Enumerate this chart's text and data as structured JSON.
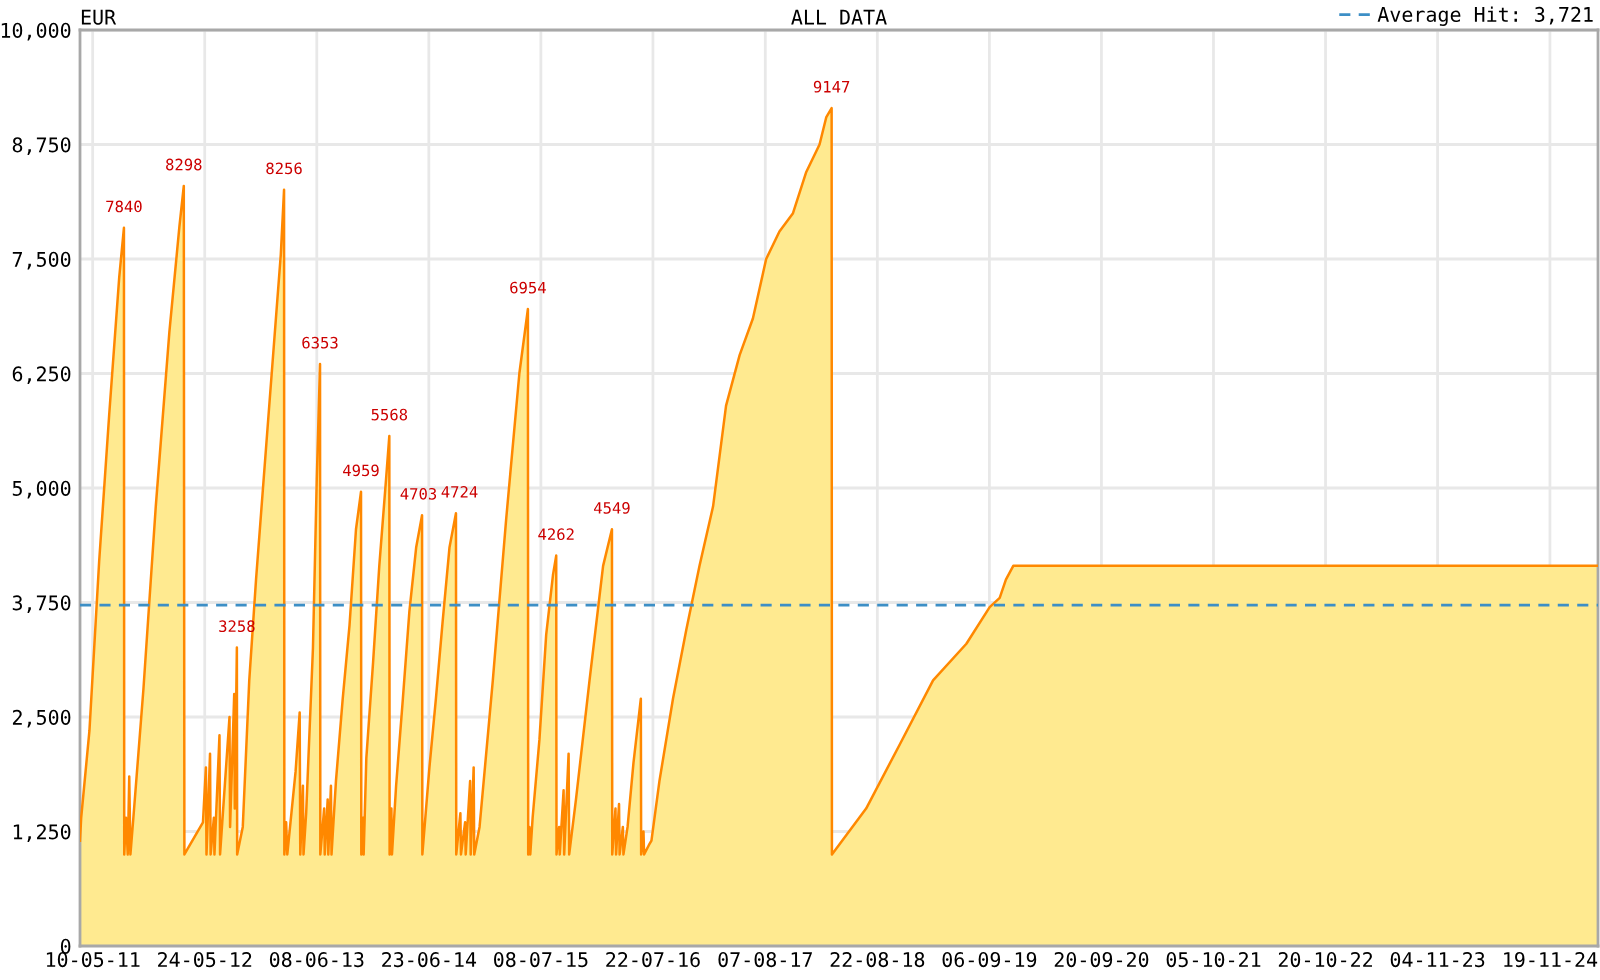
{
  "chart_data": {
    "type": "area",
    "title": "EUR",
    "subtitle": "ALL DATA",
    "x": [
      "2011-03-28",
      "2011-04-01",
      "2011-04-29",
      "2011-06-01",
      "2011-07-05",
      "2011-08-08",
      "2011-08-24",
      "2011-08-25",
      "2011-08-31",
      "2011-09-06",
      "2011-09-11",
      "2011-09-15",
      "2011-09-25",
      "2011-10-29",
      "2011-12-10",
      "2012-01-25",
      "2012-02-28",
      "2012-03-14",
      "2012-03-16",
      "2012-05-18",
      "2012-05-28",
      "2012-05-30",
      "2012-06-11",
      "2012-06-13",
      "2012-06-24",
      "2012-06-26",
      "2012-07-13",
      "2012-07-15",
      "2012-08-16",
      "2012-08-18",
      "2012-09-01",
      "2012-09-03",
      "2012-09-10",
      "2012-09-11",
      "2012-09-30",
      "2012-10-22",
      "2012-11-14",
      "2012-12-30",
      "2013-02-06",
      "2013-02-17",
      "2013-02-18",
      "2013-02-24",
      "2013-02-28",
      "2013-03-28",
      "2013-04-11",
      "2013-04-13",
      "2013-04-22",
      "2013-04-24",
      "2013-05-03",
      "2013-05-26",
      "2013-06-08",
      "2013-06-19",
      "2013-06-20",
      "2013-07-03",
      "2013-07-05",
      "2013-07-15",
      "2013-07-17",
      "2013-07-26",
      "2013-07-28",
      "2013-08-12",
      "2013-09-04",
      "2013-09-27",
      "2013-10-19",
      "2013-11-05",
      "2013-11-06",
      "2013-11-12",
      "2013-11-14",
      "2013-11-23",
      "2013-12-16",
      "2014-01-06",
      "2014-01-29",
      "2014-02-09",
      "2014-02-10",
      "2014-02-16",
      "2014-02-18",
      "2014-03-04",
      "2014-03-27",
      "2014-04-18",
      "2014-05-11",
      "2014-05-31",
      "2014-06-01",
      "2014-06-25",
      "2014-07-17",
      "2014-08-09",
      "2014-09-01",
      "2014-09-23",
      "2014-09-24",
      "2014-10-08",
      "2014-10-10",
      "2014-10-24",
      "2014-10-26",
      "2014-11-10",
      "2014-11-12",
      "2014-11-22",
      "2014-11-24",
      "2014-12-12",
      "2015-01-26",
      "2015-03-12",
      "2015-04-26",
      "2015-05-25",
      "2015-05-26",
      "2015-05-30",
      "2015-06-02",
      "2015-06-10",
      "2015-07-03",
      "2015-07-26",
      "2015-08-18",
      "2015-08-29",
      "2015-08-30",
      "2015-09-08",
      "2015-09-10",
      "2015-09-23",
      "2015-09-25",
      "2015-10-10",
      "2015-10-12",
      "2015-11-04",
      "2015-12-20",
      "2016-02-04",
      "2016-03-05",
      "2016-03-06",
      "2016-03-17",
      "2016-03-19",
      "2016-03-29",
      "2016-03-31",
      "2016-04-11",
      "2016-04-13",
      "2016-04-27",
      "2016-05-17",
      "2016-06-11",
      "2016-06-12",
      "2016-06-20",
      "2016-06-22",
      "2016-07-08",
      "2016-07-17",
      "2016-08-13",
      "2016-09-28",
      "2016-11-12",
      "2016-12-27",
      "2017-02-11",
      "2017-03-27",
      "2017-05-12",
      "2017-06-26",
      "2017-08-10",
      "2017-09-24",
      "2017-11-09",
      "2017-12-24",
      "2018-02-07",
      "2018-03-02",
      "2018-03-20",
      "2018-03-21",
      "2018-07-15",
      "2018-11-06",
      "2019-02-27",
      "2019-06-20",
      "2019-09-07",
      "2019-10-11",
      "2019-11-01",
      "2019-11-26",
      "2025-05-01"
    ],
    "series": [
      {
        "color": "#ffea90",
        "values": [
          1150,
          1400,
          2350,
          4200,
          5800,
          7300,
          7840,
          1000,
          1400,
          1000,
          1850,
          1000,
          1400,
          2800,
          4800,
          6700,
          7850,
          8298,
          1000,
          1350,
          1950,
          1000,
          2100,
          1000,
          1400,
          1000,
          2300,
          1000,
          2500,
          1300,
          2750,
          1500,
          3258,
          1000,
          1300,
          2900,
          4000,
          5950,
          7550,
          8256,
          1000,
          1350,
          1000,
          1900,
          2550,
          1000,
          1750,
          1000,
          1450,
          3250,
          5100,
          6353,
          1000,
          1500,
          1000,
          1600,
          1000,
          1750,
          1000,
          1800,
          2700,
          3500,
          4550,
          4959,
          1000,
          1400,
          1000,
          2050,
          3100,
          4150,
          5100,
          5568,
          1000,
          1500,
          1000,
          1750,
          2700,
          3650,
          4350,
          4703,
          1000,
          1950,
          2700,
          3550,
          4350,
          4724,
          1000,
          1450,
          1000,
          1350,
          1000,
          1800,
          1000,
          1950,
          1000,
          1300,
          2900,
          4650,
          6250,
          6954,
          1000,
          1300,
          1000,
          1400,
          2250,
          3400,
          4050,
          4262,
          1000,
          1300,
          1000,
          1700,
          1000,
          2100,
          1000,
          1600,
          2900,
          4150,
          4549,
          1000,
          1500,
          1000,
          1550,
          1000,
          1300,
          1000,
          1300,
          2000,
          2700,
          1000,
          1250,
          1000,
          1100,
          1150,
          1800,
          2700,
          3450,
          4150,
          4800,
          5900,
          6450,
          6850,
          7500,
          7800,
          8000,
          8450,
          8750,
          9050,
          9147,
          1000,
          1500,
          2200,
          2900,
          3300,
          3700,
          3800,
          4000,
          4150,
          4150
        ]
      }
    ],
    "xlim": [
      "2011-03-28",
      "2025-05-01"
    ],
    "ylim": [
      0,
      10000
    ],
    "yticks": [
      0,
      {
        "value": 1250,
        "label": "1,250"
      },
      {
        "value": 2500,
        "label": "2,500"
      },
      {
        "value": 3750,
        "label": "3,750"
      },
      {
        "value": 5000,
        "label": "5,000"
      },
      {
        "value": 6250,
        "label": "6,250"
      },
      {
        "value": 7500,
        "label": "7,500"
      },
      {
        "value": 8750,
        "label": "8,750"
      },
      {
        "value": 10000,
        "label": "10,000"
      }
    ],
    "xticks": [
      {
        "value": "2011-05-10",
        "label": "10-05-11"
      },
      {
        "value": "2011-07-25",
        "label": null
      },
      {
        "value": "2011-10-09",
        "label": null
      },
      {
        "value": "2011-12-24",
        "label": null
      },
      {
        "value": "2012-03-09",
        "label": null
      },
      {
        "value": "2012-05-24",
        "label": "24-05-12"
      },
      {
        "value": "2012-08-08",
        "label": null
      },
      {
        "value": "2012-10-23",
        "label": null
      },
      {
        "value": "2013-01-07",
        "label": null
      },
      {
        "value": "2013-03-24",
        "label": null
      },
      {
        "value": "2013-06-08",
        "label": "08-06-13"
      },
      {
        "value": "2013-08-23",
        "label": null
      },
      {
        "value": "2013-11-07",
        "label": null
      },
      {
        "value": "2014-01-22",
        "label": null
      },
      {
        "value": "2014-04-08",
        "label": null
      },
      {
        "value": "2014-06-23",
        "label": "23-06-14"
      },
      {
        "value": "2014-09-07",
        "label": null
      },
      {
        "value": "2014-11-22",
        "label": null
      },
      {
        "value": "2015-02-06",
        "label": null
      },
      {
        "value": "2015-04-23",
        "label": null
      },
      {
        "value": "2015-07-08",
        "label": "08-07-15"
      },
      {
        "value": "2015-09-22",
        "label": null
      },
      {
        "value": "2015-12-07",
        "label": null
      },
      {
        "value": "2016-02-21",
        "label": null
      },
      {
        "value": "2016-05-07",
        "label": null
      },
      {
        "value": "2016-07-22",
        "label": "22-07-16"
      },
      {
        "value": "2016-10-06",
        "label": null
      },
      {
        "value": "2016-12-21",
        "label": null
      },
      {
        "value": "2017-03-07",
        "label": null
      },
      {
        "value": "2017-05-22",
        "label": null
      },
      {
        "value": "2017-08-07",
        "label": "07-08-17"
      },
      {
        "value": "2017-10-22",
        "label": null
      },
      {
        "value": "2018-01-06",
        "label": null
      },
      {
        "value": "2018-03-23",
        "label": null
      },
      {
        "value": "2018-06-07",
        "label": null
      },
      {
        "value": "2018-08-22",
        "label": "22-08-18"
      },
      {
        "value": "2018-11-06",
        "label": null
      },
      {
        "value": "2019-01-21",
        "label": null
      },
      {
        "value": "2019-04-07",
        "label": null
      },
      {
        "value": "2019-06-22",
        "label": null
      },
      {
        "value": "2019-09-06",
        "label": "06-09-19"
      },
      {
        "value": "2019-11-21",
        "label": null
      },
      {
        "value": "2020-02-05",
        "label": null
      },
      {
        "value": "2020-04-21",
        "label": null
      },
      {
        "value": "2020-07-06",
        "label": null
      },
      {
        "value": "2020-09-20",
        "label": "20-09-20"
      },
      {
        "value": "2020-12-05",
        "label": null
      },
      {
        "value": "2021-02-19",
        "label": null
      },
      {
        "value": "2021-05-06",
        "label": null
      },
      {
        "value": "2021-07-21",
        "label": null
      },
      {
        "value": "2021-10-05",
        "label": "05-10-21"
      },
      {
        "value": "2021-12-20",
        "label": null
      },
      {
        "value": "2022-03-06",
        "label": null
      },
      {
        "value": "2022-05-21",
        "label": null
      },
      {
        "value": "2022-08-05",
        "label": null
      },
      {
        "value": "2022-10-20",
        "label": "20-10-22"
      },
      {
        "value": "2023-01-04",
        "label": null
      },
      {
        "value": "2023-03-21",
        "label": null
      },
      {
        "value": "2023-06-05",
        "label": null
      },
      {
        "value": "2023-08-20",
        "label": null
      },
      {
        "value": "2023-11-04",
        "label": "04-11-23"
      },
      {
        "value": "2024-01-19",
        "label": null
      },
      {
        "value": "2024-04-04",
        "label": null
      },
      {
        "value": "2024-06-19",
        "label": null
      },
      {
        "value": "2024-09-03",
        "label": null
      },
      {
        "value": "2024-11-19",
        "label": "19-11-24"
      },
      {
        "value": "2025-02-03",
        "label": null
      },
      {
        "value": "2025-04-20",
        "label": null
      }
    ],
    "grid": true,
    "legend": "top right",
    "ref_lines": [
      {
        "axis": "y",
        "value": 3721,
        "label": "Average Hit: 3,721",
        "color": "#3d8fc6",
        "line_style": "dashed"
      }
    ],
    "annotations": [
      {
        "text": "7840",
        "x": "2011-08-24",
        "y": 7840
      },
      {
        "text": "8298",
        "x": "2012-03-14",
        "y": 8298
      },
      {
        "text": "3258",
        "x": "2012-09-10",
        "y": 3258
      },
      {
        "text": "8256",
        "x": "2013-02-17",
        "y": 8256
      },
      {
        "text": "6353",
        "x": "2013-06-19",
        "y": 6353
      },
      {
        "text": "4959",
        "x": "2013-11-05",
        "y": 4959
      },
      {
        "text": "5568",
        "x": "2014-02-09",
        "y": 5568
      },
      {
        "text": "4703",
        "x": "2014-05-31",
        "y": 4703
      },
      {
        "text": "4724",
        "x": "2014-09-23",
        "y": 4724
      },
      {
        "text": "6954",
        "x": "2015-05-25",
        "y": 6954
      },
      {
        "text": "4262",
        "x": "2015-08-29",
        "y": 4262
      },
      {
        "text": "4549",
        "x": "2016-03-05",
        "y": 4549
      },
      {
        "text": "9147",
        "x": "2018-03-20",
        "y": 9147
      }
    ]
  }
}
